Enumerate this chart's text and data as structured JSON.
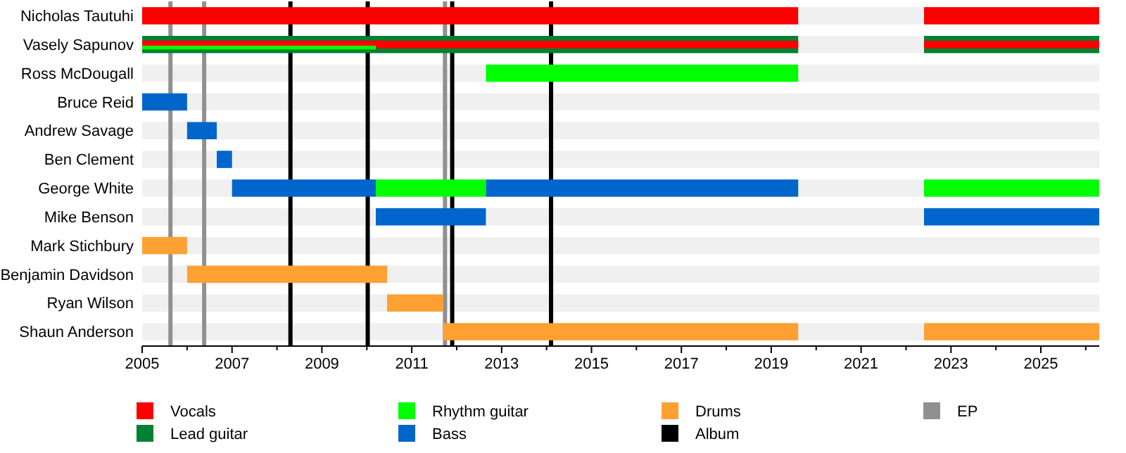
{
  "chart_data": {
    "type": "bar",
    "orientation": "horizontal",
    "categories": [
      "Nicholas Tautuhi",
      "Vasely Sapunov",
      "Ross McDougall",
      "Bruce Reid",
      "Andrew Savage",
      "Ben Clement",
      "George White",
      "Mike Benson",
      "Mark Stichbury",
      "Benjamin Davidson",
      "Ryan Wilson",
      "Shaun Anderson"
    ],
    "series": [
      {
        "name": "Vocals",
        "color": "#ff0000",
        "values": [
          14.6,
          null,
          null,
          null,
          null,
          null,
          null,
          null,
          null,
          null,
          null,
          null
        ],
        "base": [
          2005,
          null,
          null,
          null,
          null,
          null,
          null,
          null,
          null,
          null,
          null,
          null
        ]
      },
      {
        "name": "Lead guitar",
        "color": "#008033",
        "values": [
          null,
          14.6,
          null,
          null,
          null,
          null,
          null,
          null,
          null,
          null,
          null,
          null
        ],
        "base": [
          null,
          2005,
          null,
          null,
          null,
          null,
          null,
          null,
          null,
          null,
          null,
          null
        ]
      },
      {
        "name": "Rhythm guitar",
        "color": "#00ff00",
        "values": [
          null,
          null,
          6.95,
          null,
          null,
          null,
          2.45,
          null,
          null,
          null,
          null,
          null
        ],
        "base": [
          null,
          null,
          2012.65,
          null,
          null,
          null,
          2010.2,
          null,
          null,
          null,
          null,
          null
        ]
      },
      {
        "name": "Bass",
        "color": "#0066cc",
        "values": [
          null,
          null,
          null,
          1,
          0.66,
          0.34,
          3.2,
          2.45,
          null,
          null,
          null,
          null
        ],
        "base": [
          null,
          null,
          null,
          2005,
          2006,
          2006.66,
          2007,
          2010.2,
          null,
          null,
          null,
          null
        ]
      },
      {
        "name": "Drums",
        "color": "#ffa033",
        "values": [
          null,
          null,
          null,
          null,
          null,
          null,
          null,
          null,
          1,
          4.45,
          1.25,
          7.9
        ],
        "base": [
          null,
          null,
          null,
          null,
          null,
          null,
          null,
          null,
          2005,
          2006,
          2010.45,
          2011.7
        ]
      },
      {
        "color": "#ff0000",
        "values": [
          3.9,
          14.6,
          null,
          null,
          null,
          null,
          null,
          null,
          null,
          null,
          null,
          null
        ],
        "base": [
          2022.4,
          2005,
          null,
          null,
          null,
          null,
          null,
          null,
          null,
          null,
          null,
          null
        ]
      },
      {
        "color": "#008033",
        "values": [
          null,
          3.9,
          null,
          null,
          null,
          null,
          null,
          null,
          null,
          null,
          null,
          null
        ],
        "base": [
          null,
          2022.4,
          null,
          null,
          null,
          null,
          null,
          null,
          null,
          null,
          null,
          null
        ]
      },
      {
        "color": "#ff0000",
        "values": [
          null,
          3.9,
          null,
          null,
          null,
          null,
          null,
          null,
          null,
          null,
          null,
          null
        ],
        "base": [
          null,
          2022.4,
          null,
          null,
          null,
          null,
          null,
          null,
          null,
          null,
          null,
          null
        ]
      },
      {
        "color": "#00ff00",
        "values": [
          null,
          5.2,
          null,
          null,
          null,
          null,
          3.9,
          null,
          null,
          null,
          null,
          null
        ],
        "base": [
          null,
          2005,
          null,
          null,
          null,
          null,
          2022.4,
          null,
          null,
          null,
          null,
          null
        ]
      },
      {
        "color": "#0066cc",
        "values": [
          null,
          null,
          null,
          null,
          null,
          null,
          6.95,
          3.9,
          null,
          null,
          null,
          null
        ],
        "base": [
          null,
          null,
          null,
          null,
          null,
          null,
          2012.65,
          2022.4,
          null,
          null,
          null,
          null
        ]
      },
      {
        "color": "#ffa033",
        "values": [
          null,
          null,
          null,
          null,
          null,
          null,
          null,
          null,
          null,
          null,
          null,
          3.9
        ],
        "base": [
          null,
          null,
          null,
          null,
          null,
          null,
          null,
          null,
          null,
          null,
          null,
          2022.4
        ]
      }
    ],
    "xlim": [
      2005,
      2026.3
    ],
    "xticks": [
      2005,
      {
        "value": 2006,
        "label": null
      },
      2007,
      {
        "value": 2008,
        "label": null
      },
      2009,
      {
        "value": 2010,
        "label": null
      },
      2011,
      {
        "value": 2012,
        "label": null
      },
      2013,
      {
        "value": 2014,
        "label": null
      },
      2015,
      {
        "value": 2016,
        "label": null
      },
      2017,
      {
        "value": 2018,
        "label": null
      },
      2019,
      {
        "value": 2020,
        "label": null
      },
      2021,
      {
        "value": 2022,
        "label": null
      },
      2023,
      {
        "value": 2024,
        "label": null
      },
      2025,
      {
        "value": 2026,
        "label": null
      }
    ],
    "ref_lines": [
      {
        "axis": "x",
        "value": 2008.3,
        "label": "Album",
        "color": "#000000"
      },
      {
        "axis": "x",
        "value": 2010.02,
        "color": "#000000"
      },
      {
        "axis": "x",
        "value": 2011.9,
        "color": "#000000"
      },
      {
        "axis": "x",
        "value": 2014.1,
        "color": "#000000"
      },
      {
        "axis": "x",
        "value": 2005.63,
        "label": "EP",
        "color": "#909090"
      },
      {
        "axis": "x",
        "value": 2006.38,
        "color": "#909090"
      },
      {
        "axis": "x",
        "value": 2011.74,
        "color": "#909090"
      }
    ],
    "legend": "bottom"
  }
}
